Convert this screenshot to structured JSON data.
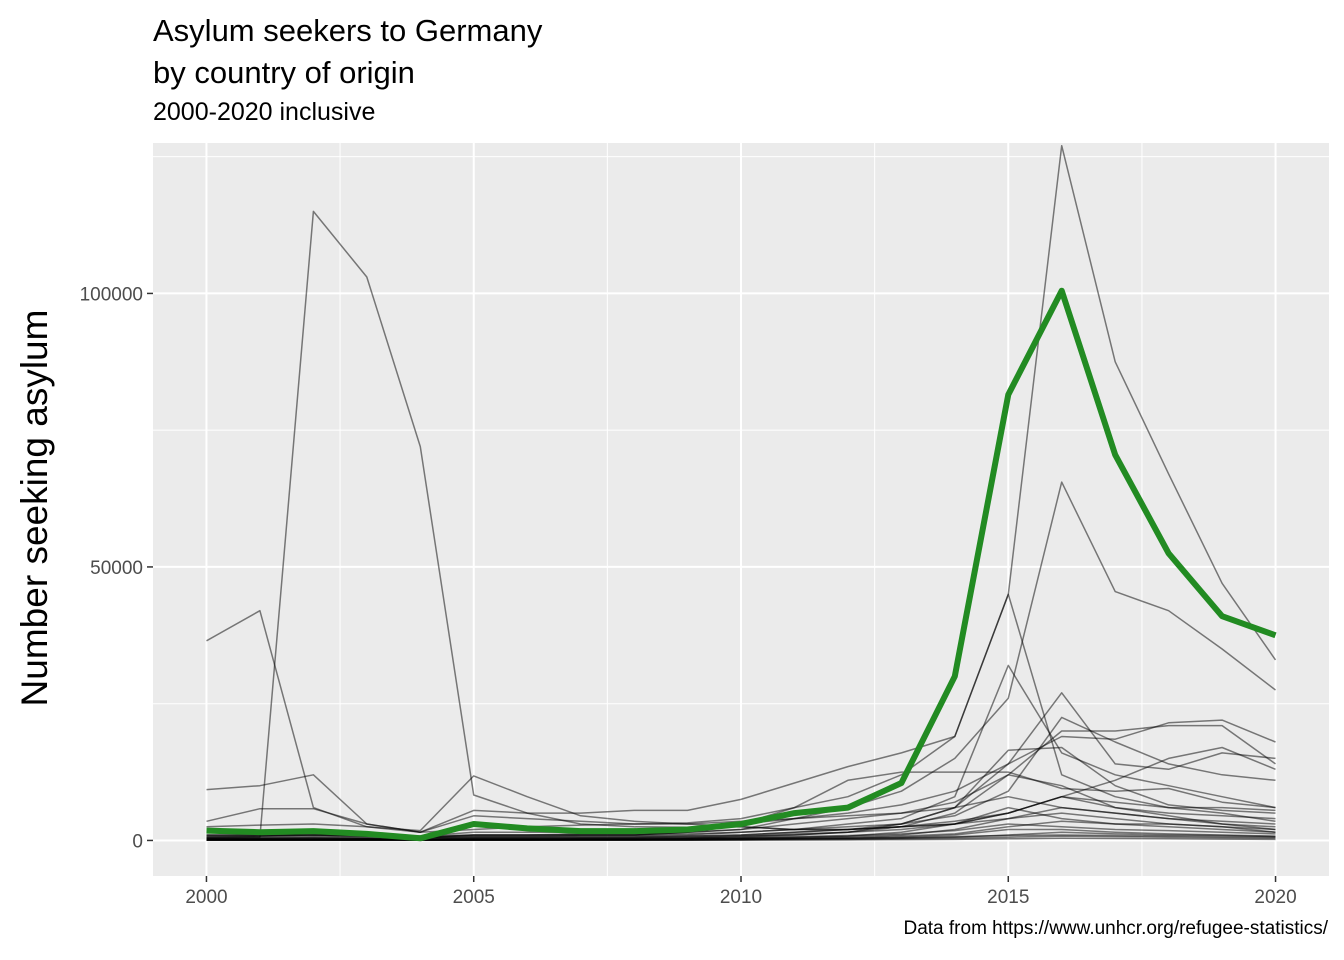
{
  "chart_data": {
    "type": "line",
    "title": "Asylum seekers to Germany\nby country of origin",
    "subtitle": "2000-2020 inclusive",
    "caption": "Data from https://www.unhcr.org/refugee-statistics/",
    "xlabel": "",
    "ylabel": "Number seeking asylum",
    "xlim": [
      1999,
      2021
    ],
    "ylim": [
      -6500,
      127500
    ],
    "x_ticks": [
      2000,
      2005,
      2010,
      2015,
      2020
    ],
    "y_ticks": [
      0,
      50000,
      100000
    ],
    "grid": true,
    "legend": "none",
    "x": [
      2000,
      2001,
      2002,
      2003,
      2004,
      2005,
      2006,
      2007,
      2008,
      2009,
      2010,
      2011,
      2012,
      2013,
      2014,
      2015,
      2016,
      2017,
      2018,
      2019,
      2020
    ],
    "highlight": {
      "color": "#228B22",
      "values": [
        1800,
        1500,
        1700,
        1200,
        400,
        3000,
        2200,
        1700,
        1700,
        2000,
        3000,
        5000,
        6000,
        10500,
        30000,
        81500,
        100500,
        70500,
        52500,
        41000,
        37500
      ]
    },
    "series_color": "#000000",
    "series": [
      {
        "values": [
          36500,
          42000,
          6000,
          2500,
          1800,
          11800,
          8000,
          4500,
          3500,
          3000,
          2500,
          2000,
          2000,
          2500,
          3000,
          4000,
          6000,
          5000,
          4000,
          3500,
          3000
        ]
      },
      {
        "values": [
          400,
          600,
          115000,
          103000,
          72000,
          8300,
          5000,
          3000,
          2500,
          2400,
          2500,
          2000,
          2000,
          2500,
          3000,
          5000,
          8000,
          6000,
          5000,
          4500,
          4000
        ]
      },
      {
        "values": [
          2500,
          2800,
          3000,
          2500,
          1500,
          2000,
          2500,
          2800,
          3000,
          3200,
          4000,
          6000,
          8000,
          12000,
          19000,
          45000,
          127000,
          87500,
          67000,
          47000,
          33000
        ]
      },
      {
        "values": [
          1500,
          1500,
          1500,
          1200,
          800,
          1000,
          1000,
          1000,
          1000,
          1500,
          2000,
          4000,
          6000,
          9000,
          15000,
          26000,
          65500,
          45500,
          42000,
          35000,
          27500
        ]
      },
      {
        "values": [
          9300,
          10000,
          12000,
          3000,
          1500,
          5500,
          5000,
          5000,
          5500,
          5500,
          7500,
          10500,
          13500,
          16000,
          19000,
          45000,
          12000,
          8000,
          6000,
          6000,
          5500
        ]
      },
      {
        "values": [
          3500,
          5800,
          5800,
          3000,
          1500,
          4500,
          4000,
          3500,
          3000,
          3000,
          3500,
          4000,
          4500,
          5000,
          6000,
          16500,
          17000,
          10000,
          6500,
          5500,
          5000
        ]
      },
      {
        "values": [
          1000,
          1000,
          1200,
          1000,
          800,
          1500,
          1500,
          1500,
          1500,
          2000,
          3000,
          4000,
          5000,
          6500,
          9000,
          14000,
          19000,
          18500,
          21500,
          22000,
          18000
        ]
      },
      {
        "values": [
          800,
          800,
          1000,
          800,
          500,
          1000,
          1000,
          1200,
          1200,
          1500,
          2000,
          3000,
          4000,
          5000,
          7000,
          12000,
          20000,
          20000,
          21000,
          21000,
          14000
        ]
      },
      {
        "values": [
          600,
          800,
          1000,
          800,
          500,
          800,
          800,
          1000,
          1000,
          1200,
          1500,
          2000,
          2500,
          3000,
          4500,
          9000,
          22500,
          18000,
          14000,
          12000,
          11000
        ]
      },
      {
        "values": [
          1000,
          1000,
          1000,
          800,
          600,
          1000,
          1000,
          1000,
          1000,
          1500,
          3000,
          6000,
          11000,
          12500,
          12500,
          12500,
          9500,
          9000,
          9500,
          7000,
          6000
        ]
      },
      {
        "values": [
          500,
          500,
          600,
          500,
          400,
          600,
          600,
          800,
          800,
          1000,
          1500,
          2000,
          3000,
          4000,
          8000,
          32000,
          16000,
          12000,
          10000,
          8000,
          6000
        ]
      },
      {
        "values": [
          300,
          300,
          400,
          300,
          200,
          400,
          400,
          500,
          500,
          800,
          1000,
          1500,
          2000,
          3000,
          6000,
          14000,
          27000,
          14000,
          13000,
          16000,
          15000
        ]
      },
      {
        "values": [
          800,
          800,
          800,
          700,
          500,
          700,
          700,
          700,
          700,
          800,
          1000,
          1500,
          2000,
          2500,
          3500,
          5000,
          8000,
          11000,
          15000,
          17000,
          13000
        ]
      },
      {
        "values": [
          300,
          300,
          300,
          300,
          200,
          300,
          300,
          400,
          400,
          500,
          800,
          1000,
          1500,
          2000,
          3000,
          5000,
          8000,
          7000,
          6000,
          5000,
          3500
        ]
      },
      {
        "values": [
          500,
          500,
          500,
          400,
          300,
          500,
          500,
          500,
          500,
          600,
          800,
          1200,
          1500,
          2500,
          5000,
          12000,
          10000,
          6000,
          4500,
          3000,
          2500
        ]
      },
      {
        "values": [
          200,
          200,
          200,
          200,
          150,
          200,
          200,
          300,
          300,
          400,
          600,
          1000,
          1500,
          3000,
          6000,
          8000,
          6000,
          5000,
          4000,
          3000,
          2000
        ]
      },
      {
        "values": [
          100,
          100,
          100,
          100,
          100,
          100,
          100,
          200,
          200,
          300,
          400,
          600,
          800,
          1500,
          3000,
          6000,
          4000,
          3000,
          3000,
          2500,
          2000
        ]
      },
      {
        "values": [
          200,
          200,
          200,
          200,
          100,
          200,
          200,
          200,
          200,
          300,
          400,
          500,
          700,
          1000,
          2000,
          4000,
          5000,
          4000,
          3000,
          2500,
          1500
        ]
      },
      {
        "values": [
          100,
          100,
          100,
          100,
          100,
          100,
          100,
          100,
          100,
          200,
          300,
          400,
          500,
          800,
          1200,
          2500,
          3500,
          3000,
          2500,
          2000,
          1500
        ]
      },
      {
        "values": [
          300,
          300,
          300,
          300,
          200,
          300,
          300,
          300,
          300,
          400,
          500,
          700,
          900,
          1200,
          1800,
          3000,
          2500,
          2000,
          1800,
          1500,
          1200
        ]
      },
      {
        "values": [
          50,
          50,
          50,
          50,
          50,
          50,
          50,
          100,
          100,
          100,
          200,
          300,
          400,
          600,
          1000,
          2000,
          2000,
          1500,
          1200,
          1000,
          800
        ]
      },
      {
        "values": [
          100,
          100,
          100,
          100,
          100,
          100,
          100,
          100,
          100,
          150,
          200,
          250,
          300,
          400,
          600,
          1000,
          1500,
          1200,
          1000,
          900,
          700
        ]
      },
      {
        "values": [
          150,
          150,
          150,
          150,
          100,
          150,
          150,
          150,
          150,
          200,
          250,
          300,
          400,
          500,
          700,
          900,
          1000,
          900,
          800,
          700,
          600
        ]
      },
      {
        "values": [
          50,
          50,
          50,
          50,
          50,
          50,
          50,
          50,
          50,
          50,
          100,
          150,
          200,
          300,
          400,
          600,
          800,
          700,
          600,
          500,
          400
        ]
      },
      {
        "values": [
          20,
          20,
          20,
          20,
          20,
          20,
          20,
          30,
          30,
          40,
          50,
          80,
          100,
          150,
          200,
          300,
          400,
          350,
          300,
          250,
          200
        ]
      }
    ]
  }
}
